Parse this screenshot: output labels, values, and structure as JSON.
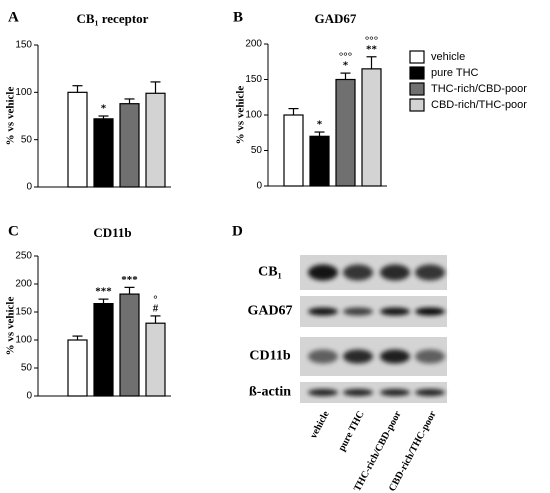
{
  "legend": {
    "entries": [
      {
        "name": "vehicle",
        "color": "#ffffff"
      },
      {
        "name": "pure THC",
        "color": "#000000"
      },
      {
        "name": "THC-rich/CBD-poor",
        "color": "#707070"
      },
      {
        "name": "CBD-rich/THC-poor",
        "color": "#d3d3d3"
      }
    ]
  },
  "chart_data": [
    {
      "type": "bar",
      "panel": "A",
      "title": "CB₁ receptor",
      "y_label": "% vs vehicle",
      "values": [
        100,
        72,
        88,
        99
      ],
      "errors": [
        7,
        3,
        5,
        12
      ],
      "annotations": [
        [],
        [
          "*"
        ],
        [],
        []
      ],
      "ylim": [
        0,
        150
      ],
      "yticks": [
        0,
        50,
        100,
        150
      ]
    },
    {
      "type": "bar",
      "panel": "B",
      "title": "GAD67",
      "y_label": "% vs vehicle",
      "values": [
        100,
        70,
        150,
        165
      ],
      "errors": [
        9,
        6,
        9,
        17
      ],
      "annotations": [
        [],
        [
          "*"
        ],
        [
          "*",
          "°°°"
        ],
        [
          "**",
          "°°°"
        ]
      ],
      "ylim": [
        0,
        200
      ],
      "yticks": [
        0,
        50,
        100,
        150,
        200
      ]
    },
    {
      "type": "bar",
      "panel": "C",
      "title": "CD11b",
      "y_label": "% vs vehicle",
      "values": [
        100,
        165,
        182,
        130
      ],
      "errors": [
        7,
        8,
        12,
        13
      ],
      "annotations": [
        [],
        [
          "***"
        ],
        [
          "***"
        ],
        [
          "#",
          "°"
        ]
      ],
      "ylim": [
        0,
        250
      ],
      "yticks": [
        0,
        50,
        100,
        150,
        200,
        250
      ]
    }
  ],
  "blot": {
    "panel": "D",
    "rows": [
      "CB₁",
      "GAD67",
      "CD11b",
      "ß-actin"
    ],
    "lanes": [
      "vehicle",
      "pure THC",
      "THC-rich/CBD-poor",
      "CBD-rich/THC-poor"
    ]
  }
}
